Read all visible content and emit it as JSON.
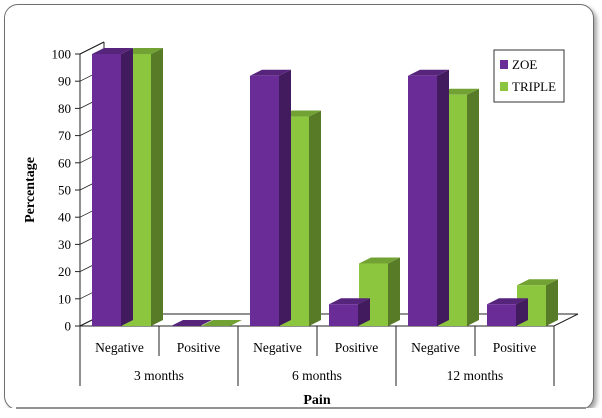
{
  "chart_data": {
    "type": "bar",
    "style": "3d-clustered",
    "ylabel": "Percentage",
    "xlabel": "Pain",
    "ylim": [
      0,
      100
    ],
    "yticks": [
      0,
      10,
      20,
      30,
      40,
      50,
      60,
      70,
      80,
      90,
      100
    ],
    "groups": [
      "3 months",
      "6 months",
      "12 months"
    ],
    "categories": [
      "Negative",
      "Positive",
      "Negative",
      "Positive",
      "Negative",
      "Positive"
    ],
    "series": [
      {
        "name": "ZOE",
        "color": "#6a2c97",
        "values": [
          100,
          0,
          92,
          8,
          92,
          8
        ]
      },
      {
        "name": "TRIPLE",
        "color": "#8cc63f",
        "values": [
          100,
          0,
          77,
          23,
          85,
          15
        ]
      }
    ],
    "legend_position": "top-right",
    "grid": false
  }
}
